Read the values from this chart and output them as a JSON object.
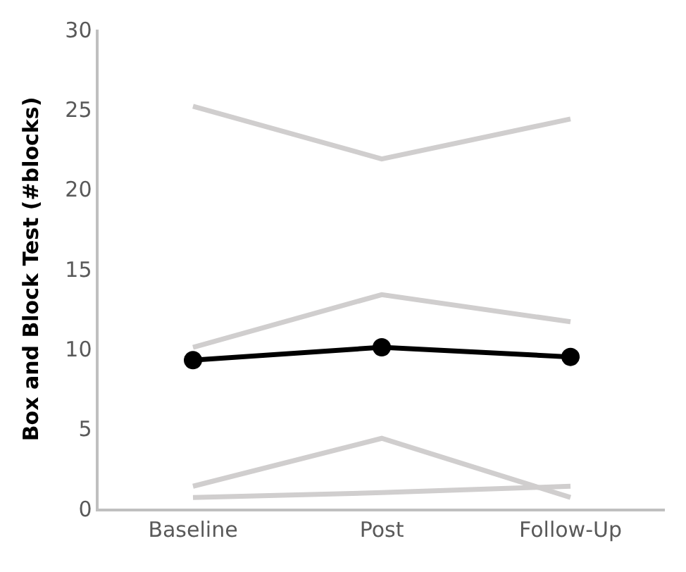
{
  "chart_data": {
    "type": "line",
    "ylabel": "Box and Block Test (#blocks)",
    "categories": [
      "Baseline",
      "Post",
      "Follow-Up"
    ],
    "ylim": [
      0,
      30
    ],
    "yticks": [
      0,
      5,
      10,
      15,
      20,
      25,
      30
    ],
    "series": [
      {
        "color": "#d0cece",
        "values": [
          25.2,
          21.9,
          24.4
        ],
        "marker": "none"
      },
      {
        "color": "#d0cece",
        "values": [
          10.1,
          13.4,
          11.7
        ],
        "marker": "none"
      },
      {
        "color": "#d0cece",
        "values": [
          1.4,
          4.4,
          0.7
        ],
        "marker": "none"
      },
      {
        "color": "#d0cece",
        "values": [
          0.7,
          1.0,
          1.4
        ],
        "marker": "none"
      },
      {
        "color": "#000000",
        "values": [
          9.3,
          10.1,
          9.5
        ],
        "marker": "circle"
      }
    ]
  }
}
